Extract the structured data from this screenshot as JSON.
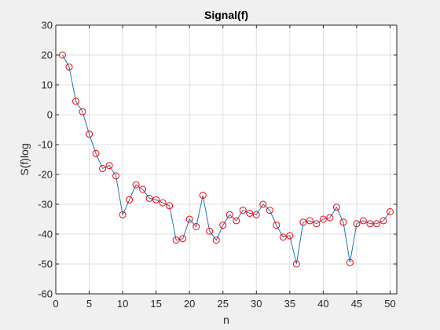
{
  "chart_data": {
    "type": "line",
    "title": "Signal(f)",
    "xlabel": "n",
    "ylabel": "S(f)log",
    "xlim": [
      0,
      51
    ],
    "ylim": [
      -60,
      30
    ],
    "xticks": [
      0,
      5,
      10,
      15,
      20,
      25,
      30,
      35,
      40,
      45,
      50
    ],
    "yticks": [
      30,
      20,
      10,
      0,
      -10,
      -20,
      -30,
      -40,
      -50,
      -60
    ],
    "grid": true,
    "series": [
      {
        "line_color": "#1f77b4",
        "marker": "circle",
        "marker_color": "#ff0000",
        "x": [
          1,
          2,
          3,
          4,
          5,
          6,
          7,
          8,
          9,
          10,
          11,
          12,
          13,
          14,
          15,
          16,
          17,
          18,
          19,
          20,
          21,
          22,
          23,
          24,
          25,
          26,
          27,
          28,
          29,
          30,
          31,
          32,
          33,
          34,
          35,
          36,
          37,
          38,
          39,
          40,
          41,
          42,
          43,
          44,
          45,
          46,
          47,
          48,
          49,
          50
        ],
        "y": [
          20,
          16,
          4.5,
          1,
          -6.5,
          -13,
          -18,
          -17,
          -20.5,
          -33.5,
          -28.5,
          -23.5,
          -25,
          -28,
          -28.5,
          -29.5,
          -30.5,
          -42,
          -41.5,
          -35,
          -37.5,
          -27,
          -39,
          -42,
          -37,
          -33.5,
          -35.5,
          -32,
          -33,
          -33.5,
          -30,
          -32,
          -37,
          -41,
          -40.5,
          -50,
          -36,
          -35.5,
          -36.5,
          -35,
          -34.5,
          -31,
          -36,
          -49.5,
          -36.5,
          -35.5,
          -36.5,
          -36.5,
          -35.5,
          -32.5
        ]
      }
    ]
  }
}
